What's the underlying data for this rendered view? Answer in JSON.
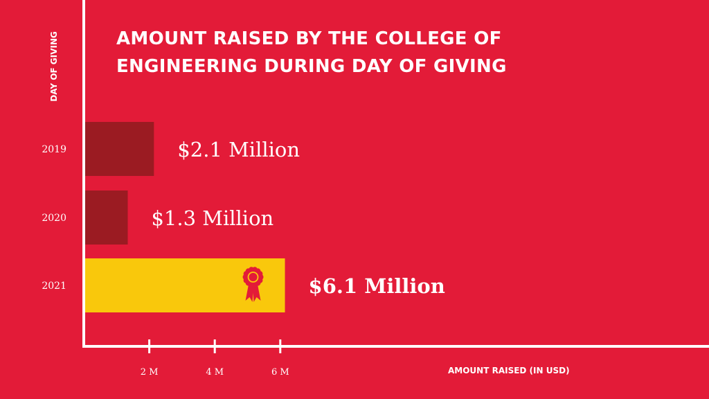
{
  "colors": {
    "background": "#e31b38",
    "axis": "#ffffff",
    "bar_past": "#9b1b22",
    "bar_highlight": "#f9c80c",
    "ribbon": "#e31b38",
    "text": "#ffffff"
  },
  "chart_data": {
    "type": "bar",
    "orientation": "horizontal",
    "title": "AMOUNT RAISED BY THE COLLEGE OF ENGINEERING DURING DAY OF GIVING",
    "ylabel": "DAY OF GIVING",
    "xlabel": "AMOUNT RAISED (IN USD)",
    "categories": [
      "2019",
      "2020",
      "2021"
    ],
    "values": [
      2.1,
      1.3,
      6.1
    ],
    "value_labels": [
      "$2.1 Million",
      "$1.3 Million",
      "$6.1 Million"
    ],
    "highlight_index": 2,
    "highlight_icon": "award-ribbon-icon",
    "x_ticks": [
      2,
      4,
      6
    ],
    "x_tick_labels": [
      "2 M",
      "4 M",
      "6 M"
    ],
    "xlim": [
      0,
      6
    ],
    "grid": false,
    "legend": "none"
  }
}
